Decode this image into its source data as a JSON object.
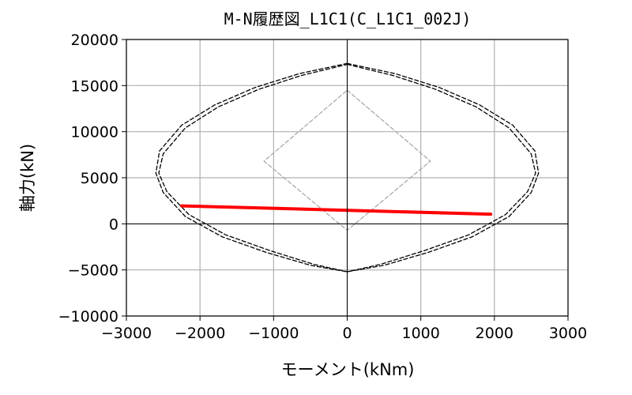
{
  "chart_data": {
    "type": "line",
    "title": "M-N履歴図_L1C1(C_L1C1_002J)",
    "xlabel": "モーメント(kNm)",
    "ylabel": "軸力(kN)",
    "xlim": [
      -3000,
      3000
    ],
    "ylim": [
      -10000,
      20000
    ],
    "xticks": [
      -3000,
      -2000,
      -1000,
      0,
      1000,
      2000,
      3000
    ],
    "yticks": [
      -10000,
      -5000,
      0,
      5000,
      10000,
      15000,
      20000
    ],
    "xtick_labels": [
      "−3000",
      "−2000",
      "−1000",
      "0",
      "1000",
      "2000",
      "3000"
    ],
    "ytick_labels": [
      "−10000",
      "−5000",
      "0",
      "5000",
      "10000",
      "15000",
      "20000"
    ],
    "grid": true,
    "series": [
      {
        "style": "dashed",
        "color": "#000000",
        "x": [
          0,
          650,
          1250,
          1800,
          2250,
          2550,
          2600,
          2500,
          2200,
          1700,
          1100,
          500,
          0,
          -500,
          -1100,
          -1700,
          -2200,
          -2500,
          -2600,
          -2550,
          -2250,
          -1800,
          -1250,
          -650,
          0
        ],
        "y": [
          17400,
          16300,
          14800,
          12900,
          10700,
          7900,
          5500,
          3400,
          800,
          -1400,
          -3100,
          -4500,
          -5200,
          -4500,
          -3100,
          -1400,
          800,
          3400,
          5500,
          7900,
          10700,
          12900,
          14800,
          16300,
          17400
        ]
      },
      {
        "style": "dashed",
        "color": "#000000",
        "x": [
          0,
          620,
          1200,
          1750,
          2200,
          2500,
          2560,
          2450,
          2150,
          1650,
          1050,
          450,
          0,
          -450,
          -1050,
          -1650,
          -2150,
          -2450,
          -2560,
          -2500,
          -2200,
          -1750,
          -1200,
          -620,
          0
        ],
        "y": [
          17300,
          16100,
          14600,
          12700,
          10400,
          7600,
          5500,
          3500,
          1000,
          -1200,
          -2900,
          -4400,
          -5200,
          -4400,
          -2900,
          -1200,
          1000,
          3500,
          5500,
          7600,
          10400,
          12700,
          14600,
          16100,
          17300
        ]
      },
      {
        "style": "dashed",
        "color": "#aaaaaa",
        "x": [
          0,
          1130,
          0,
          -1130,
          0
        ],
        "y": [
          14500,
          6800,
          -700,
          6800,
          14500
        ]
      },
      {
        "style": "solid",
        "color": "#ff0000",
        "x": [
          -2250,
          1950
        ],
        "y": [
          1950,
          1050
        ]
      }
    ]
  }
}
